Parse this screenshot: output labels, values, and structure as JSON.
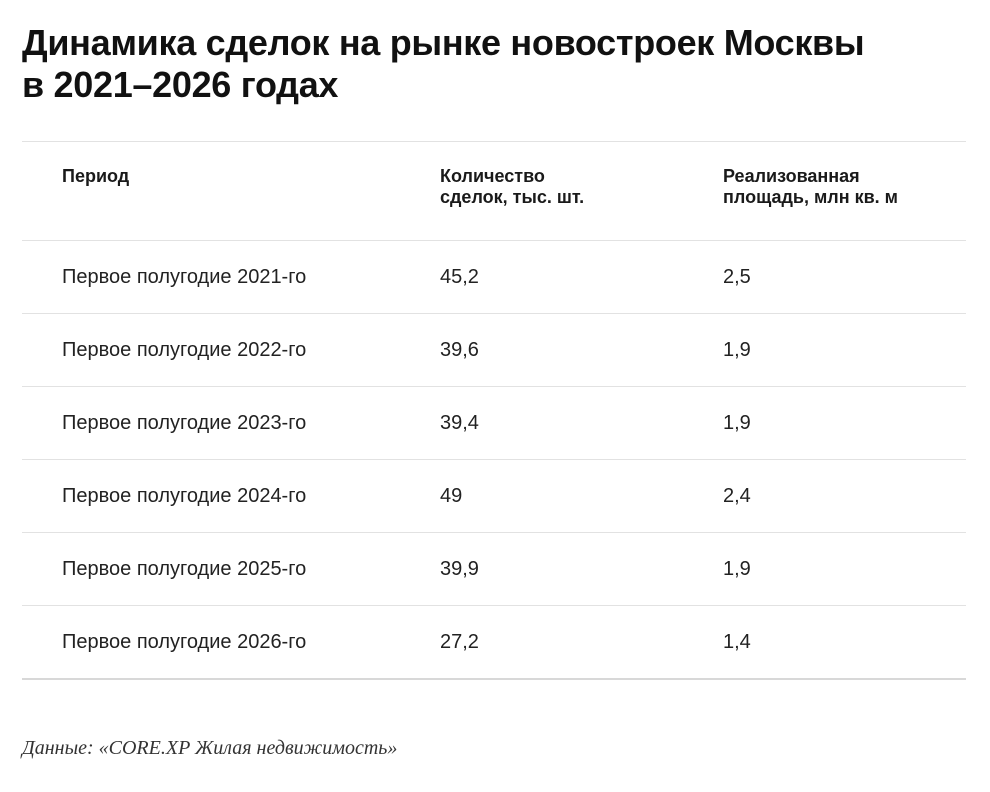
{
  "title_line1": "Динамика сделок на рынке новостроек Москвы",
  "title_line2": "в 2021–2026 годах",
  "table": {
    "headers": {
      "period": "Период",
      "deals_line1": "Количество",
      "deals_line2": "сделок, тыс. шт.",
      "area_line1": "Реализованная",
      "area_line2": "площадь, млн кв. м"
    },
    "rows": [
      {
        "period": "Первое полугодие 2021-го",
        "deals": "45,2",
        "area": "2,5"
      },
      {
        "period": "Первое полугодие 2022-го",
        "deals": "39,6",
        "area": "1,9"
      },
      {
        "period": "Первое полугодие 2023-го",
        "deals": "39,4",
        "area": "1,9"
      },
      {
        "period": "Первое полугодие 2024-го",
        "deals": "49",
        "area": "2,4"
      },
      {
        "period": "Первое полугодие 2025-го",
        "deals": "39,9",
        "area": "1,9"
      },
      {
        "period": "Первое полугодие 2026-го",
        "deals": "27,2",
        "area": "1,4"
      }
    ]
  },
  "source": "Данные: «CORE.XP Жилая недвижимость»"
}
